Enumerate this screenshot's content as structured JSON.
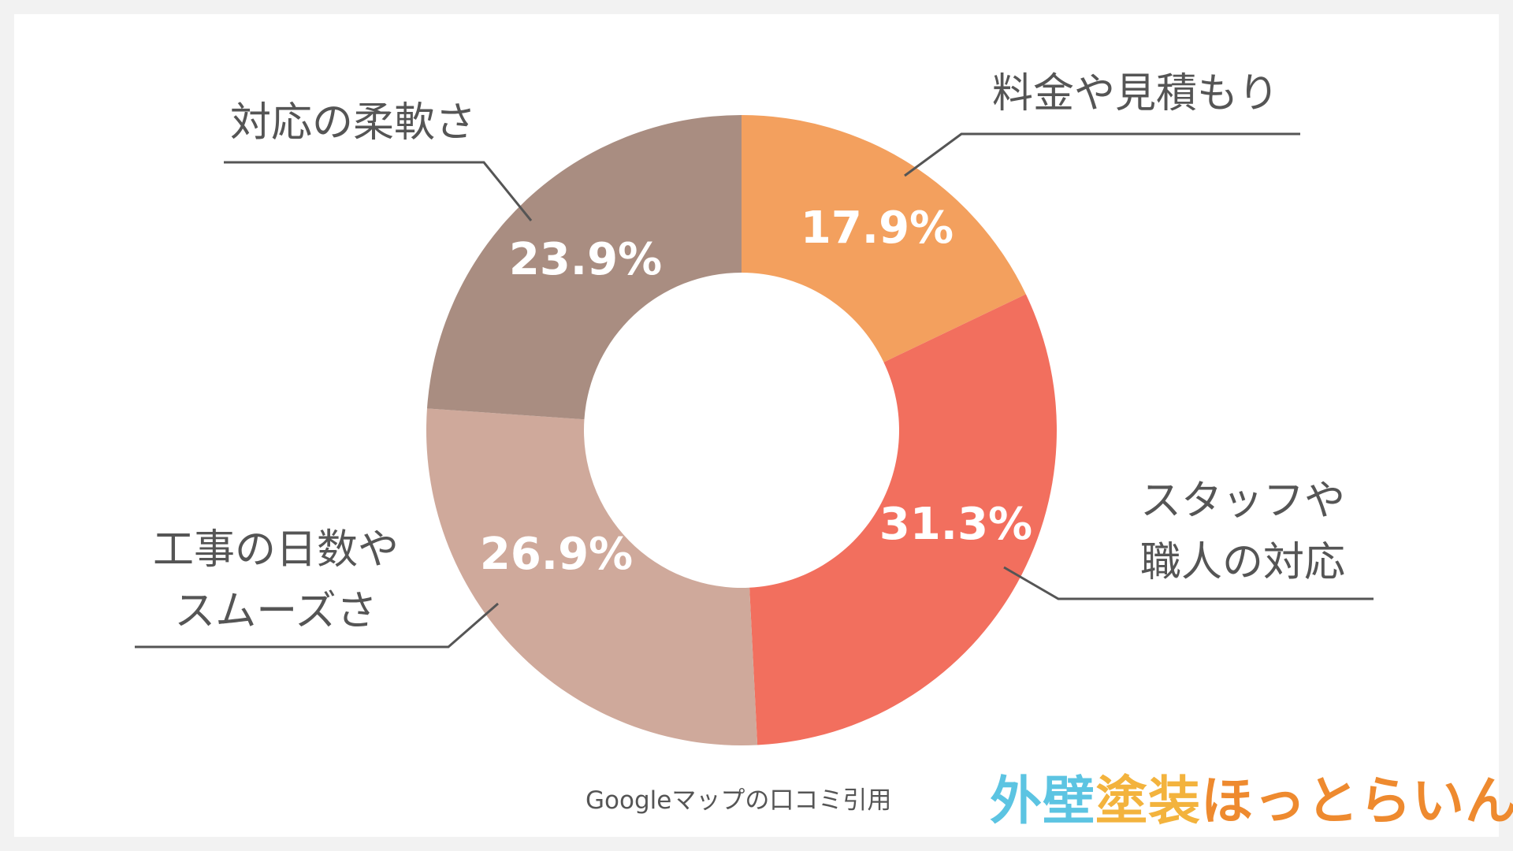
{
  "chart_data": {
    "type": "pie",
    "donut": true,
    "categories": [
      "料金や見積もり",
      "スタッフや職人の対応",
      "工事の日数やスムーズさ",
      "対応の柔軟さ"
    ],
    "values": [
      17.9,
      31.3,
      26.9,
      23.9
    ],
    "value_labels": [
      "17.9%",
      "31.3%",
      "26.9%",
      "23.9%"
    ],
    "label_lines": [
      [
        "料金や見積もり"
      ],
      [
        "スタッフや",
        "職人の対応"
      ],
      [
        "工事の日数や",
        "スムーズさ"
      ],
      [
        "対応の柔軟さ"
      ]
    ],
    "colors": [
      "#f3a05e",
      "#f26f5e",
      "#cfa99b",
      "#a98d81"
    ],
    "start": "12 o'clock",
    "direction": "clockwise"
  },
  "source_note": "Googleマップの口コミ引用",
  "logo": {
    "part1": "外壁",
    "part2": "塗装",
    "part3": "ほっとらいん",
    "colors": [
      "#5cc4e2",
      "#f3b33d",
      "#ee8a2f"
    ]
  }
}
